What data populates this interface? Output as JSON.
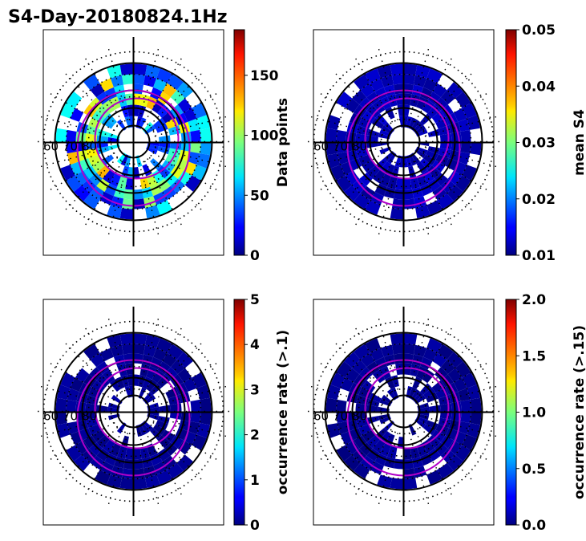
{
  "title": "S4-Day-20180824.1Hz",
  "chart_data": [
    {
      "type": "heatmap",
      "projection": "polar",
      "variable": "Data points",
      "colorbar_label": "Data points",
      "colorbar_range": [
        0,
        188
      ],
      "colorbar_ticks": [
        0,
        50,
        100,
        150
      ],
      "colorbar_tick_labels": [
        "0",
        "50",
        "100",
        "150"
      ],
      "colormap": "jet",
      "typical_value": 35,
      "lat_labels": [
        "60",
        "70",
        "80"
      ]
    },
    {
      "type": "heatmap",
      "projection": "polar",
      "variable": "mean S4",
      "colorbar_label": "mean S4",
      "colorbar_range": [
        0.01,
        0.05
      ],
      "colorbar_ticks": [
        0.01,
        0.02,
        0.03,
        0.04,
        0.05
      ],
      "colorbar_tick_labels": [
        "0.01",
        "0.02",
        "0.03",
        "0.04",
        "0.05"
      ],
      "colormap": "jet",
      "typical_value": 0.012,
      "lat_labels": [
        "60",
        "70",
        "80"
      ]
    },
    {
      "type": "heatmap",
      "projection": "polar",
      "variable": "occurrence rate (>.1)",
      "colorbar_label": "occurrence rate (>.1)",
      "colorbar_range": [
        0,
        5
      ],
      "colorbar_ticks": [
        0,
        1,
        2,
        3,
        4,
        5
      ],
      "colorbar_tick_labels": [
        "0",
        "1",
        "2",
        "3",
        "4",
        "5"
      ],
      "colormap": "jet",
      "typical_value": 0,
      "lat_labels": [
        "60",
        "70",
        "80"
      ]
    },
    {
      "type": "heatmap",
      "projection": "polar",
      "variable": "occurrence rate (>.15)",
      "colorbar_label": "occurrence rate (>.15)",
      "colorbar_range": [
        0,
        2
      ],
      "colorbar_ticks": [
        0,
        0.5,
        1.0,
        1.5,
        2.0
      ],
      "colorbar_tick_labels": [
        "0.0",
        "0.5",
        "1.0",
        "1.5",
        "2.0"
      ],
      "colormap": "jet",
      "typical_value": 0,
      "lat_labels": [
        "60",
        "70",
        "80"
      ]
    }
  ],
  "colors": {
    "dark_blue": "#00008f",
    "auroral_oval": "#b000c8",
    "axis": "#000000"
  }
}
